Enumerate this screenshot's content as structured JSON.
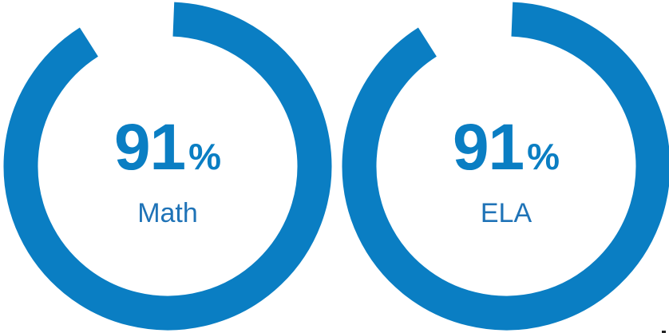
{
  "chart_data": [
    {
      "type": "pie",
      "value": 91,
      "value_text": "91",
      "unit": "%",
      "label": "Math",
      "max": 100,
      "color": "#0a7ec3",
      "track_color": "#ffffff"
    },
    {
      "type": "pie",
      "value": 91,
      "value_text": "91",
      "unit": "%",
      "label": "ELA",
      "max": 100,
      "color": "#0a7ec3",
      "track_color": "#ffffff"
    }
  ]
}
